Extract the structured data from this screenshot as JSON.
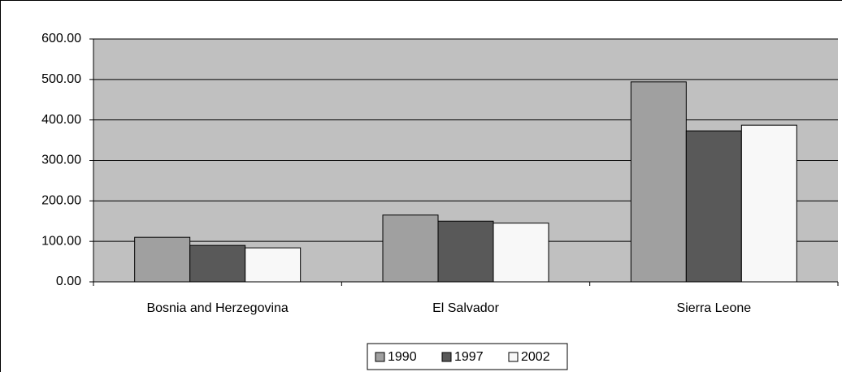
{
  "chart_data": {
    "type": "bar",
    "categories": [
      "Bosnia and Herzegovina",
      "El Salvador",
      "Sierra Leone"
    ],
    "series": [
      {
        "name": "1990",
        "color": "#a0a0a0",
        "values": [
          110,
          165,
          494
        ]
      },
      {
        "name": "1997",
        "color": "#595959",
        "values": [
          90,
          150,
          373
        ]
      },
      {
        "name": "2002",
        "color": "#f8f8f8",
        "values": [
          84,
          145,
          387
        ]
      }
    ],
    "ylim": [
      0,
      600
    ],
    "yticks": [
      {
        "value": 0,
        "label": "0.00"
      },
      {
        "value": 100,
        "label": "100.00"
      },
      {
        "value": 200,
        "label": "200.00"
      },
      {
        "value": 300,
        "label": "300.00"
      },
      {
        "value": 400,
        "label": "400.00"
      },
      {
        "value": 500,
        "label": "500.00"
      },
      {
        "value": 600,
        "label": "600.00"
      }
    ],
    "grid": true,
    "legend": "bottom"
  }
}
